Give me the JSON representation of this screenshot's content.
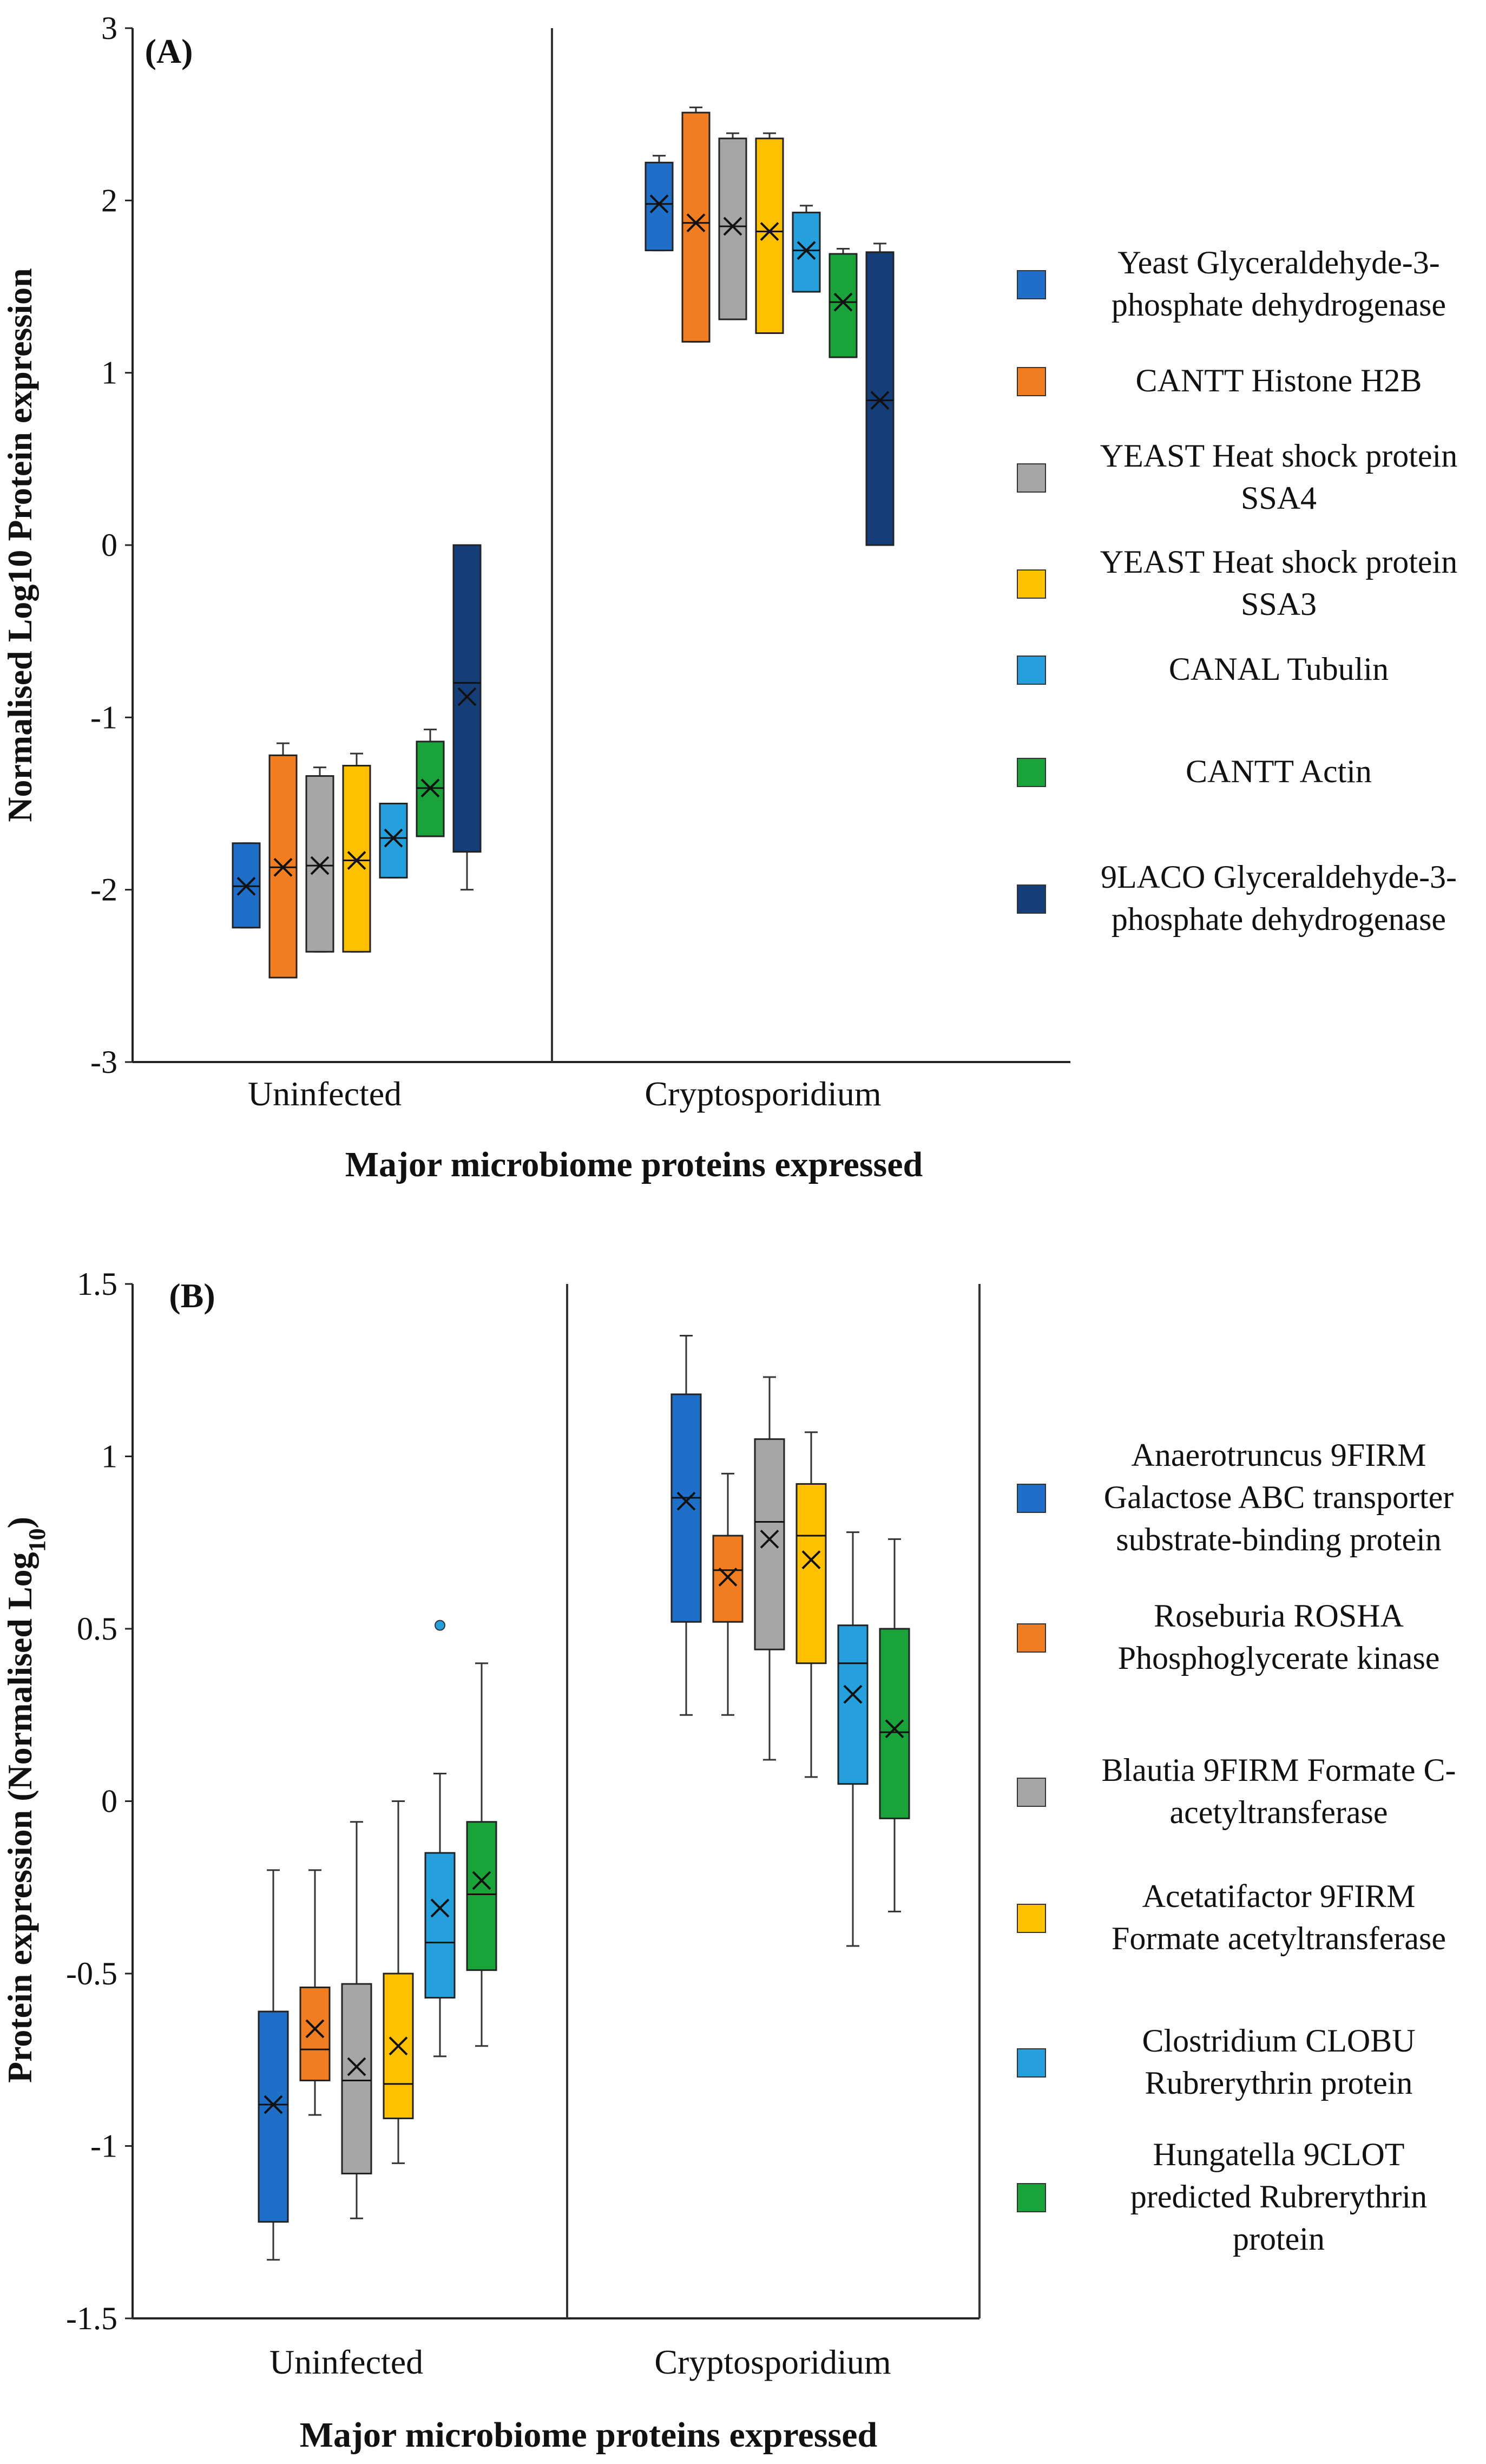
{
  "chart_data": [
    {
      "type": "boxplot",
      "panel_label": "(A)",
      "ylabel": "Normalised Log10 Protein expression",
      "xlabel": "Major microbiome proteins expressed",
      "ylim": [
        -3,
        3
      ],
      "yticks": [
        3,
        2,
        1,
        0,
        -1,
        -2,
        -3
      ],
      "ytick_labels": [
        "3",
        "2",
        "1",
        "0",
        "-1",
        "-2",
        "-3"
      ],
      "categories": [
        "Uninfected",
        "Cryptosporidium"
      ],
      "series": [
        {
          "name": "Yeast Glyceraldehyde-3-phosphate dehydrogenase",
          "legend_lines": [
            "Yeast Glyceraldehyde-3-",
            "phosphate dehydrogenase"
          ],
          "color": "#1f6fc8",
          "boxes": [
            {
              "min": -2.22,
              "q1": -2.22,
              "median": -1.98,
              "q3": -1.73,
              "max": -1.73,
              "mean": -1.98
            },
            {
              "min": 1.71,
              "q1": 1.71,
              "median": 1.98,
              "q3": 2.22,
              "max": 2.26,
              "mean": 1.98
            }
          ]
        },
        {
          "name": "CANTT Histone H2B",
          "legend_lines": [
            "CANTT Histone H2B"
          ],
          "color": "#f07d22",
          "boxes": [
            {
              "min": -2.51,
              "q1": -2.51,
              "median": -1.87,
              "q3": -1.22,
              "max": -1.15,
              "mean": -1.87
            },
            {
              "min": 1.18,
              "q1": 1.18,
              "median": 1.87,
              "q3": 2.51,
              "max": 2.54,
              "mean": 1.87
            }
          ]
        },
        {
          "name": "YEAST Heat shock protein SSA4",
          "legend_lines": [
            "YEAST Heat shock protein",
            "SSA4"
          ],
          "color": "#a6a6a6",
          "boxes": [
            {
              "min": -2.36,
              "q1": -2.36,
              "median": -1.86,
              "q3": -1.34,
              "max": -1.29,
              "mean": -1.86
            },
            {
              "min": 1.31,
              "q1": 1.31,
              "median": 1.85,
              "q3": 2.36,
              "max": 2.39,
              "mean": 1.85
            }
          ]
        },
        {
          "name": "YEAST Heat shock protein SSA3",
          "legend_lines": [
            "YEAST Heat shock protein",
            "SSA3"
          ],
          "color": "#ffc000",
          "boxes": [
            {
              "min": -2.36,
              "q1": -2.36,
              "median": -1.83,
              "q3": -1.28,
              "max": -1.21,
              "mean": -1.83
            },
            {
              "min": 1.23,
              "q1": 1.23,
              "median": 1.82,
              "q3": 2.36,
              "max": 2.39,
              "mean": 1.82
            }
          ]
        },
        {
          "name": "CANAL Tubulin",
          "legend_lines": [
            "CANAL Tubulin"
          ],
          "color": "#25a0dc",
          "boxes": [
            {
              "min": -1.93,
              "q1": -1.93,
              "median": -1.7,
              "q3": -1.5,
              "max": -1.5,
              "mean": -1.7
            },
            {
              "min": 1.47,
              "q1": 1.47,
              "median": 1.71,
              "q3": 1.93,
              "max": 1.97,
              "mean": 1.71
            }
          ]
        },
        {
          "name": "CANTT Actin",
          "legend_lines": [
            "CANTT Actin"
          ],
          "color": "#1aa33a",
          "boxes": [
            {
              "min": -1.69,
              "q1": -1.69,
              "median": -1.41,
              "q3": -1.14,
              "max": -1.07,
              "mean": -1.41
            },
            {
              "min": 1.09,
              "q1": 1.09,
              "median": 1.41,
              "q3": 1.69,
              "max": 1.72,
              "mean": 1.41
            }
          ]
        },
        {
          "name": "9LACO Glyceraldehyde-3-phosphate dehydrogenase",
          "legend_lines": [
            "9LACO Glyceraldehyde-3-",
            "phosphate dehydrogenase"
          ],
          "color": "#153e78",
          "boxes": [
            {
              "min": -2.0,
              "q1": -1.78,
              "median": -0.8,
              "q3": 0.0,
              "max": 0.0,
              "mean": -0.88
            },
            {
              "min": 0.0,
              "q1": 0.0,
              "median": 0.84,
              "q3": 1.7,
              "max": 1.75,
              "mean": 0.84
            }
          ]
        }
      ]
    },
    {
      "type": "boxplot",
      "panel_label": "(B)",
      "ylabel": "Protein expression (Normalised Log",
      "ylabel_sub": "10",
      "ylabel_end": ")",
      "xlabel": "Major microbiome proteins expressed",
      "ylim": [
        -1.5,
        1.5
      ],
      "yticks": [
        1.5,
        1,
        0.5,
        0,
        -0.5,
        -1,
        -1.5
      ],
      "ytick_labels": [
        "1.5",
        "1",
        "0.5",
        "0",
        "-0.5",
        "-1",
        "-1.5"
      ],
      "categories": [
        "Uninfected",
        "Cryptosporidium"
      ],
      "series": [
        {
          "name": "Anaerotruncus 9FIRM Galactose ABC transporter substrate-binding protein",
          "legend_lines": [
            "Anaerotruncus 9FIRM",
            "Galactose ABC transporter",
            "substrate-binding protein"
          ],
          "color": "#1f6fc8",
          "boxes": [
            {
              "min": -1.33,
              "q1": -1.22,
              "median": -0.88,
              "q3": -0.61,
              "max": -0.2,
              "mean": -0.88
            },
            {
              "min": 0.25,
              "q1": 0.52,
              "median": 0.88,
              "q3": 1.18,
              "max": 1.35,
              "mean": 0.87
            }
          ]
        },
        {
          "name": "Roseburia ROSHA Phosphoglycerate kinase",
          "legend_lines": [
            "Roseburia ROSHA",
            "Phosphoglycerate kinase"
          ],
          "color": "#f07d22",
          "boxes": [
            {
              "min": -0.91,
              "q1": -0.81,
              "median": -0.72,
              "q3": -0.54,
              "max": -0.2,
              "mean": -0.66
            },
            {
              "min": 0.25,
              "q1": 0.52,
              "median": 0.67,
              "q3": 0.77,
              "max": 0.95,
              "mean": 0.65
            }
          ]
        },
        {
          "name": "Blautia 9FIRM Formate C-acetyltransferase",
          "legend_lines": [
            "Blautia 9FIRM Formate C-",
            "acetyltransferase"
          ],
          "color": "#a6a6a6",
          "boxes": [
            {
              "min": -1.21,
              "q1": -1.08,
              "median": -0.81,
              "q3": -0.53,
              "max": -0.06,
              "mean": -0.77
            },
            {
              "min": 0.12,
              "q1": 0.44,
              "median": 0.81,
              "q3": 1.05,
              "max": 1.23,
              "mean": 0.76
            }
          ]
        },
        {
          "name": "Acetatifactor 9FIRM Formate acetyltransferase",
          "legend_lines": [
            "Acetatifactor 9FIRM",
            "Formate acetyltransferase"
          ],
          "color": "#ffc000",
          "boxes": [
            {
              "min": -1.05,
              "q1": -0.92,
              "median": -0.82,
              "q3": -0.5,
              "max": 0.0,
              "mean": -0.71
            },
            {
              "min": 0.07,
              "q1": 0.4,
              "median": 0.77,
              "q3": 0.92,
              "max": 1.07,
              "mean": 0.7
            }
          ]
        },
        {
          "name": "Clostridium CLOBU Rubrerythrin protein",
          "legend_lines": [
            "Clostridium CLOBU",
            "Rubrerythrin protein"
          ],
          "color": "#25a0dc",
          "boxes": [
            {
              "min": -0.74,
              "q1": -0.57,
              "median": -0.41,
              "q3": -0.15,
              "max": 0.08,
              "mean": -0.31,
              "outliers": [
                0.51
              ]
            },
            {
              "min": -0.42,
              "q1": 0.05,
              "median": 0.4,
              "q3": 0.51,
              "max": 0.78,
              "mean": 0.31
            }
          ]
        },
        {
          "name": "Hungatella 9CLOT predicted Rubrerythrin protein",
          "legend_lines": [
            "Hungatella 9CLOT",
            "predicted Rubrerythrin",
            "protein"
          ],
          "color": "#1aa33a",
          "boxes": [
            {
              "min": -0.71,
              "q1": -0.49,
              "median": -0.27,
              "q3": -0.06,
              "max": 0.4,
              "mean": -0.23
            },
            {
              "min": -0.32,
              "q1": -0.05,
              "median": 0.2,
              "q3": 0.5,
              "max": 0.76,
              "mean": 0.21
            }
          ]
        }
      ]
    }
  ]
}
